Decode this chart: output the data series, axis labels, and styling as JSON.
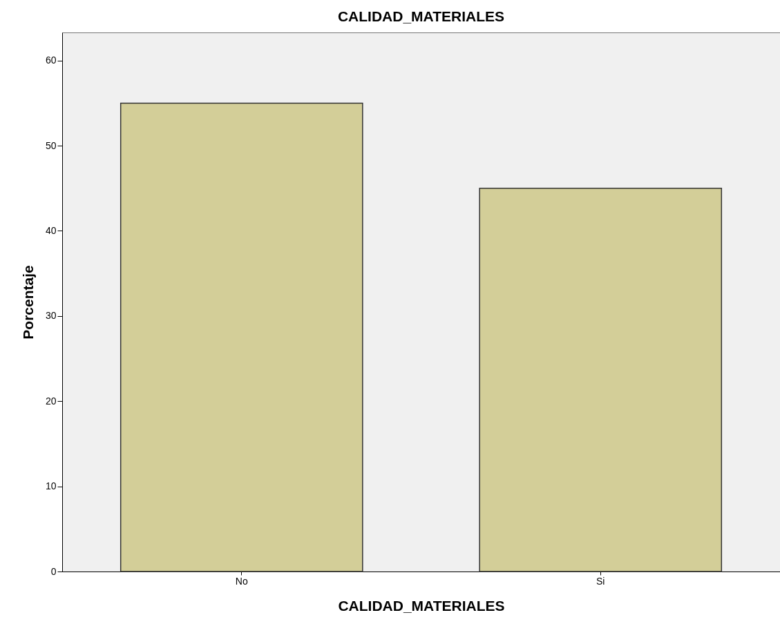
{
  "chart_data": {
    "type": "bar",
    "title": "CALIDAD_MATERIALES",
    "xlabel": "CALIDAD_MATERIALES",
    "ylabel": "Porcentaje",
    "categories": [
      "No",
      "Si"
    ],
    "values": [
      55,
      45
    ],
    "color": "#d3ce98",
    "ylim": [
      0,
      63.3
    ],
    "yticks": [
      0,
      10,
      20,
      30,
      40,
      50,
      60
    ]
  }
}
